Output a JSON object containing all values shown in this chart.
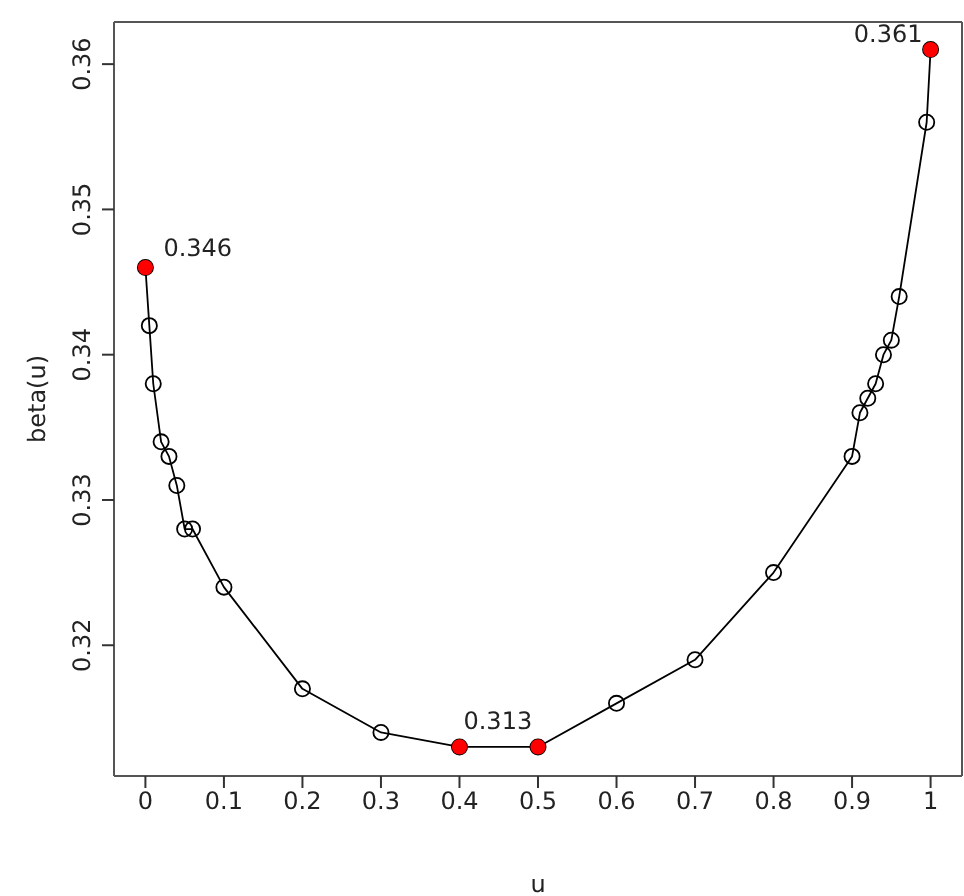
{
  "chart_data": {
    "type": "line",
    "xlabel": "u",
    "ylabel": "beta(u)",
    "xlim": [
      -0.04,
      1.04
    ],
    "ylim": [
      0.311,
      0.3629
    ],
    "xticks": [
      0,
      0.1,
      0.2,
      0.3,
      0.4,
      0.5,
      0.6,
      0.7,
      0.8,
      0.9,
      1
    ],
    "yticks": [
      0.32,
      0.33,
      0.34,
      0.35,
      0.36
    ],
    "grid": false,
    "legend": false,
    "series": [
      {
        "color": "#000000",
        "marker": "circle",
        "x": [
          0,
          0.005,
          0.01,
          0.02,
          0.03,
          0.04,
          0.05,
          0.06,
          0.1,
          0.2,
          0.3,
          0.4,
          0.5,
          0.6,
          0.7,
          0.8,
          0.9,
          0.91,
          0.92,
          0.93,
          0.94,
          0.95,
          0.96,
          0.995,
          1
        ],
        "values": [
          0.346,
          0.342,
          0.338,
          0.334,
          0.333,
          0.331,
          0.328,
          0.328,
          0.324,
          0.317,
          0.314,
          0.313,
          0.313,
          0.316,
          0.319,
          0.325,
          0.333,
          0.336,
          0.337,
          0.338,
          0.34,
          0.341,
          0.344,
          0.356,
          0.361
        ]
      },
      {
        "type": "scatter",
        "color": "#ff0000",
        "marker": "circle",
        "x": [
          0,
          0.4,
          0.5,
          1
        ],
        "values": [
          0.346,
          0.313,
          0.313,
          0.361
        ],
        "value_labels": [
          "0.346",
          "0.313",
          null,
          "0.361"
        ]
      }
    ]
  }
}
